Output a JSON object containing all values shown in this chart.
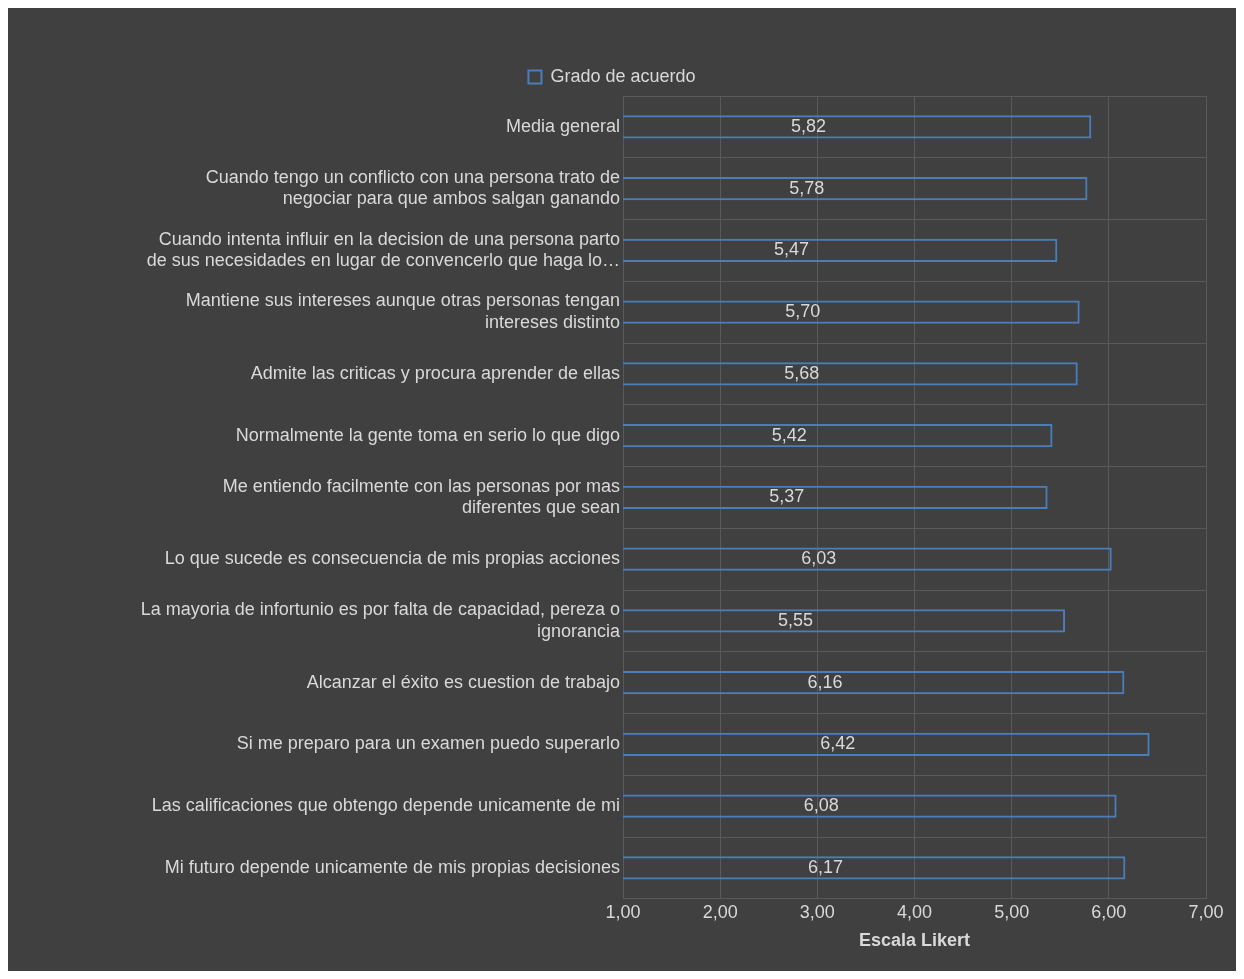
{
  "chart_data": {
    "type": "bar",
    "orientation": "horizontal",
    "xlabel": "Escala Likert",
    "legend": "top",
    "grid": true,
    "categories": [
      "Media general",
      "Cuando tengo un conflicto con una persona trato de negociar para que ambos salgan ganando",
      "Cuando intenta influir en la decision de una persona parto de sus necesidades en lugar de convencerlo que haga lo…",
      "Mantiene sus intereses aunque otras personas tengan intereses distinto",
      "Admite las criticas y procura aprender de ellas",
      "Normalmente la gente toma en serio lo que digo",
      "Me entiendo facilmente con las personas por mas diferentes que sean",
      "Lo que sucede es consecuencia de mis propias acciones",
      "La mayoria de infortunio es por falta de capacidad, pereza o ignorancia",
      "Alcanzar el éxito es cuestion de trabajo",
      "Si me preparo para un examen puedo superarlo",
      "Las calificaciones que obtengo depende unicamente de mi",
      "Mi futuro depende unicamente de mis propias decisiones"
    ],
    "series": [
      {
        "name": "Grado de acuerdo",
        "color": "#4a7ebb",
        "values": [
          5.82,
          5.78,
          5.47,
          5.7,
          5.68,
          5.42,
          5.37,
          6.03,
          5.55,
          6.16,
          6.42,
          6.08,
          6.17
        ],
        "value_labels": [
          "5,82",
          "5,78",
          "5,47",
          "5,70",
          "5,68",
          "5,42",
          "5,37",
          "6,03",
          "5,55",
          "6,16",
          "6,42",
          "6,08",
          "6,17"
        ]
      }
    ],
    "xlim": [
      1,
      7
    ],
    "xticks": [
      {
        "value": 1,
        "label": "1,00"
      },
      {
        "value": 2,
        "label": "2,00"
      },
      {
        "value": 3,
        "label": "3,00"
      },
      {
        "value": 4,
        "label": "4,00"
      },
      {
        "value": 5,
        "label": "5,00"
      },
      {
        "value": 6,
        "label": "6,00"
      },
      {
        "value": 7,
        "label": "7,00"
      }
    ]
  }
}
